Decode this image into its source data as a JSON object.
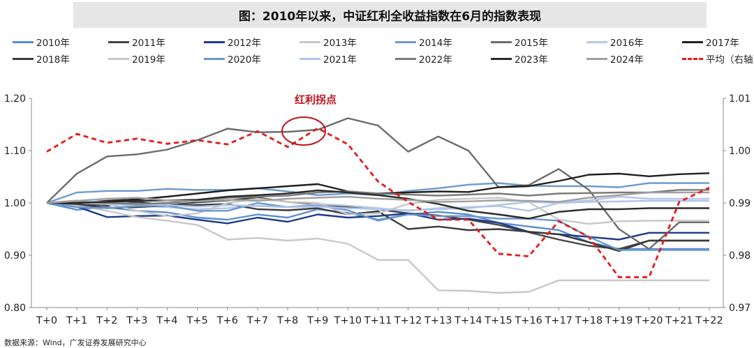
{
  "title": "图：2010年以来，中证红利全收益指数在6月的指数表现",
  "source": "数据来源：Wind，广发证券发展研究中心",
  "annotation": "红利拐点",
  "colors": {
    "2010年": "#5b8fd0",
    "2011年": "#444444",
    "2012年": "#1f3a8a",
    "2013年": "#c8c8c8",
    "2014年": "#6e9bcf",
    "2015年": "#6b6b6b",
    "2016年": "#b4c8e4",
    "2017年": "#1f1f1f",
    "2018年": "#3a3a3a",
    "2019年": "#c8c8c8",
    "2020年": "#6a98cc",
    "2021年": "#b0c4e8",
    "2022年": "#7a7a7a",
    "2023年": "#2a2a2a",
    "2024年": "#a0a0a0",
    "平均（右轴）": "#e8191a",
    "annotation": "#c0141e"
  },
  "chart_data": {
    "type": "line",
    "title": "图：2010年以来，中证红利全收益指数在6月的指数表现",
    "x": [
      "T+0",
      "T+1",
      "T+2",
      "T+3",
      "T+4",
      "T+5",
      "T+6",
      "T+7",
      "T+8",
      "T+9",
      "T+10",
      "T+11",
      "T+12",
      "T+13",
      "T+14",
      "T+15",
      "T+16",
      "T+17",
      "T+18",
      "T+19",
      "T+20",
      "T+21",
      "T+22"
    ],
    "ylim": [
      0.8,
      1.2
    ],
    "yticks": [
      "0.80",
      "0.90",
      "1.00",
      "1.10",
      "1.20"
    ],
    "y2lim": [
      0.97,
      1.01
    ],
    "y2ticks": [
      "0.97",
      "0.98",
      "0.99",
      "1.00",
      "1.01"
    ],
    "legend_position": "top",
    "grid": false,
    "series": [
      {
        "name": "2010年",
        "axis": "left",
        "values": [
          1.0,
          0.987,
          0.992,
          0.985,
          0.982,
          0.972,
          0.968,
          0.978,
          0.972,
          0.988,
          0.981,
          0.968,
          0.978,
          0.983,
          0.978,
          0.962,
          0.955,
          0.948,
          0.925,
          0.912,
          0.912,
          0.912,
          0.912
        ]
      },
      {
        "name": "2011年",
        "axis": "left",
        "values": [
          1.0,
          0.998,
          0.995,
          1.002,
          0.996,
          1.001,
          1.005,
          1.01,
          1.002,
          0.998,
          0.992,
          0.988,
          0.98,
          0.976,
          0.968,
          0.958,
          0.944,
          0.93,
          0.918,
          0.912,
          0.928,
          0.928,
          0.928
        ]
      },
      {
        "name": "2012年",
        "axis": "left",
        "values": [
          1.0,
          0.993,
          0.973,
          0.975,
          0.976,
          0.968,
          0.961,
          0.972,
          0.964,
          0.978,
          0.972,
          0.975,
          0.98,
          0.968,
          0.97,
          0.962,
          0.945,
          0.94,
          0.935,
          0.93,
          0.943,
          0.943,
          0.943
        ]
      },
      {
        "name": "2013年",
        "axis": "left",
        "values": [
          1.0,
          0.995,
          0.985,
          0.973,
          0.966,
          0.958,
          0.93,
          0.933,
          0.928,
          0.932,
          0.922,
          0.891,
          0.891,
          0.833,
          0.832,
          0.828,
          0.83,
          0.852,
          0.852,
          0.852,
          0.852,
          0.852,
          0.852
        ]
      },
      {
        "name": "2014年",
        "axis": "left",
        "values": [
          1.0,
          1.02,
          1.023,
          1.023,
          1.027,
          1.025,
          1.025,
          1.028,
          1.022,
          1.015,
          1.018,
          1.015,
          1.023,
          1.028,
          1.035,
          1.038,
          1.033,
          1.032,
          1.032,
          1.03,
          1.038,
          1.038,
          1.038
        ]
      },
      {
        "name": "2015年",
        "axis": "left",
        "values": [
          1.0,
          1.056,
          1.089,
          1.093,
          1.102,
          1.12,
          1.142,
          1.135,
          1.136,
          1.14,
          1.162,
          1.148,
          1.098,
          1.127,
          1.1,
          1.03,
          1.034,
          1.065,
          1.025,
          0.95,
          0.912,
          0.963,
          0.963
        ]
      },
      {
        "name": "2016年",
        "axis": "left",
        "values": [
          1.0,
          1.0,
          0.998,
          0.995,
          0.992,
          0.988,
          0.99,
          0.995,
          0.992,
          0.998,
          0.995,
          0.99,
          0.985,
          0.99,
          0.992,
          0.994,
          0.985,
          1.0,
          1.005,
          1.012,
          1.008,
          1.008,
          1.008
        ]
      },
      {
        "name": "2017年",
        "axis": "left",
        "values": [
          1.0,
          1.0,
          1.004,
          1.007,
          1.012,
          1.018,
          1.024,
          1.028,
          1.032,
          1.036,
          1.022,
          1.018,
          1.02,
          1.022,
          1.021,
          1.03,
          1.032,
          1.042,
          1.054,
          1.056,
          1.051,
          1.055,
          1.057
        ]
      },
      {
        "name": "2018年",
        "axis": "left",
        "values": [
          1.0,
          0.998,
          0.99,
          0.992,
          0.995,
          0.996,
          0.998,
          0.988,
          0.986,
          0.99,
          0.978,
          0.984,
          0.95,
          0.955,
          0.948,
          0.95,
          0.945,
          0.94,
          0.925,
          0.908,
          0.928,
          0.928,
          0.928
        ]
      },
      {
        "name": "2019年",
        "axis": "left",
        "values": [
          1.0,
          1.005,
          0.998,
          0.985,
          0.975,
          0.98,
          1.0,
          1.008,
          1.002,
          1.0,
          0.978,
          0.98,
          0.998,
          1.006,
          1.008,
          1.01,
          1.002,
          0.968,
          0.96,
          0.965,
          0.966,
          0.966,
          0.966
        ]
      },
      {
        "name": "2020年",
        "axis": "left",
        "values": [
          1.0,
          0.992,
          0.99,
          0.994,
          0.995,
          0.985,
          0.985,
          1.0,
          0.992,
          0.995,
          0.986,
          0.966,
          0.978,
          0.975,
          0.975,
          0.97,
          0.97,
          0.966,
          0.935,
          0.91,
          0.91,
          0.91,
          0.91
        ]
      },
      {
        "name": "2021年",
        "axis": "left",
        "values": [
          1.0,
          1.003,
          1.002,
          0.998,
          0.996,
          0.993,
          0.996,
          0.994,
          0.992,
          0.993,
          0.99,
          0.988,
          0.986,
          0.988,
          0.99,
          0.996,
          1.002,
          1.0,
          1.002,
          1.003,
          1.004,
          1.004,
          1.004
        ]
      },
      {
        "name": "2022年",
        "axis": "left",
        "values": [
          1.0,
          1.002,
          1.0,
          0.998,
          1.0,
          1.005,
          1.01,
          1.012,
          1.014,
          1.02,
          1.022,
          1.018,
          1.016,
          1.014,
          1.016,
          1.018,
          1.014,
          1.018,
          1.019,
          1.02,
          1.02,
          1.025,
          1.025
        ]
      },
      {
        "name": "2023年",
        "axis": "left",
        "values": [
          1.0,
          1.0,
          1.002,
          1.004,
          1.005,
          1.006,
          1.012,
          1.015,
          1.018,
          1.024,
          1.02,
          1.015,
          1.008,
          0.998,
          0.985,
          0.978,
          0.97,
          0.983,
          0.988,
          0.988,
          0.99,
          0.99,
          0.99
        ]
      },
      {
        "name": "2024年",
        "axis": "left",
        "values": [
          1.0,
          1.004,
          1.008,
          1.01,
          1.005,
          1.003,
          1.006,
          1.004,
          1.008,
          1.01,
          1.012,
          1.008,
          1.006,
          1.002,
          1.003,
          1.005,
          1.004,
          1.002,
          1.01,
          1.015,
          1.02,
          1.02,
          1.02
        ]
      },
      {
        "name": "平均（右轴）",
        "axis": "right",
        "dashed": true,
        "values": [
          0.9998,
          1.0032,
          1.0015,
          1.0023,
          1.0013,
          1.002,
          1.0012,
          1.0037,
          1.0007,
          1.0043,
          1.0012,
          0.9941,
          0.9902,
          0.9868,
          0.9868,
          0.9803,
          0.9798,
          0.9865,
          0.9835,
          0.9758,
          0.9758,
          0.9902,
          0.9929
        ]
      }
    ]
  }
}
